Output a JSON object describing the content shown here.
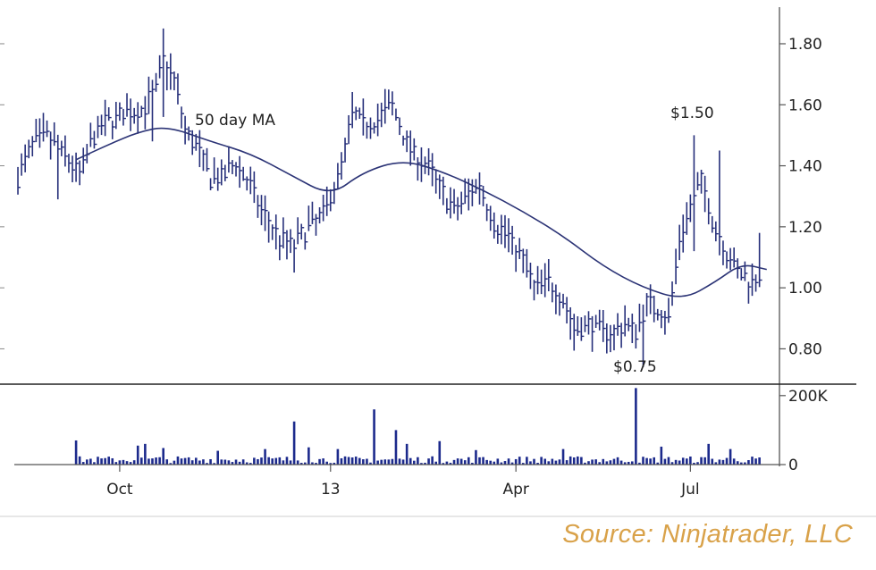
{
  "chart_data": {
    "type": "bar",
    "subtype": "ohlc-price-with-volume",
    "title": "",
    "xlabel": "",
    "ylabel": "",
    "x_ticks": [
      "Oct",
      "13",
      "Apr",
      "Jul"
    ],
    "price_axis": {
      "ticks": [
        "1.80",
        "1.60",
        "1.40",
        "1.20",
        "1.00",
        "0.80"
      ],
      "ylim": [
        0.69,
        1.92
      ]
    },
    "volume_axis": {
      "ticks": [
        "200K",
        "0"
      ],
      "ylim": [
        0,
        228000
      ]
    },
    "annotations": {
      "ma_label": "50 day MA",
      "high_label": "$1.50",
      "low_label": "$0.75"
    },
    "price_anchors": [
      [
        0,
        1.36
      ],
      [
        4,
        1.47
      ],
      [
        8,
        1.5
      ],
      [
        13,
        1.43
      ],
      [
        17,
        1.37
      ],
      [
        21,
        1.5
      ],
      [
        25,
        1.55
      ],
      [
        30,
        1.57
      ],
      [
        34,
        1.58
      ],
      [
        38,
        1.65
      ],
      [
        40,
        1.75
      ],
      [
        43,
        1.68
      ],
      [
        46,
        1.52
      ],
      [
        50,
        1.44
      ],
      [
        53,
        1.36
      ],
      [
        56,
        1.36
      ],
      [
        60,
        1.41
      ],
      [
        64,
        1.33
      ],
      [
        67,
        1.25
      ],
      [
        72,
        1.16
      ],
      [
        76,
        1.14
      ],
      [
        80,
        1.2
      ],
      [
        84,
        1.24
      ],
      [
        86,
        1.3
      ],
      [
        89,
        1.4
      ],
      [
        92,
        1.57
      ],
      [
        95,
        1.54
      ],
      [
        99,
        1.55
      ],
      [
        103,
        1.6
      ],
      [
        106,
        1.5
      ],
      [
        109,
        1.44
      ],
      [
        113,
        1.39
      ],
      [
        117,
        1.31
      ],
      [
        120,
        1.25
      ],
      [
        124,
        1.31
      ],
      [
        127,
        1.34
      ],
      [
        131,
        1.21
      ],
      [
        135,
        1.17
      ],
      [
        139,
        1.09
      ],
      [
        142,
        1.0
      ],
      [
        146,
        1.02
      ],
      [
        150,
        0.96
      ],
      [
        153,
        0.86
      ],
      [
        157,
        0.88
      ],
      [
        161,
        0.86
      ],
      [
        164,
        0.85
      ],
      [
        167,
        0.88
      ],
      [
        170,
        0.86
      ],
      [
        173,
        0.95
      ],
      [
        176,
        0.93
      ],
      [
        179,
        0.9
      ],
      [
        182,
        1.15
      ],
      [
        185,
        1.27
      ],
      [
        188,
        1.35
      ],
      [
        191,
        1.22
      ],
      [
        194,
        1.14
      ],
      [
        197,
        1.07
      ],
      [
        201,
        1.02
      ],
      [
        204,
        1.04
      ]
    ],
    "spikes": [
      {
        "bar": 40,
        "high": 1.85,
        "low": 1.56
      },
      {
        "bar": 37,
        "low": 1.48
      },
      {
        "bar": 11,
        "low": 1.29
      },
      {
        "bar": 76,
        "low": 1.05
      },
      {
        "bar": 102,
        "high": 1.65
      },
      {
        "bar": 172,
        "low": 0.74
      },
      {
        "bar": 186,
        "high": 1.5,
        "low": 1.12
      },
      {
        "bar": 193,
        "high": 1.45
      },
      {
        "bar": 204,
        "high": 1.18
      }
    ],
    "ma_points": [
      [
        16,
        1.42
      ],
      [
        25,
        1.47
      ],
      [
        33,
        1.51
      ],
      [
        41,
        1.53
      ],
      [
        53,
        1.48
      ],
      [
        64,
        1.44
      ],
      [
        75,
        1.37
      ],
      [
        86,
        1.3
      ],
      [
        95,
        1.38
      ],
      [
        106,
        1.42
      ],
      [
        117,
        1.38
      ],
      [
        128,
        1.32
      ],
      [
        139,
        1.25
      ],
      [
        150,
        1.17
      ],
      [
        161,
        1.07
      ],
      [
        172,
        1.0
      ],
      [
        183,
        0.96
      ],
      [
        192,
        1.02
      ],
      [
        199,
        1.08
      ],
      [
        206,
        1.06
      ]
    ],
    "volume_baseline": 9000,
    "volume_spikes": [
      {
        "bar": 16,
        "value": 70000
      },
      {
        "bar": 33,
        "value": 55000
      },
      {
        "bar": 35,
        "value": 60000
      },
      {
        "bar": 40,
        "value": 48000
      },
      {
        "bar": 55,
        "value": 40000
      },
      {
        "bar": 68,
        "value": 45000
      },
      {
        "bar": 76,
        "value": 125000
      },
      {
        "bar": 80,
        "value": 50000
      },
      {
        "bar": 88,
        "value": 45000
      },
      {
        "bar": 98,
        "value": 160000
      },
      {
        "bar": 104,
        "value": 100000
      },
      {
        "bar": 107,
        "value": 60000
      },
      {
        "bar": 116,
        "value": 68000
      },
      {
        "bar": 126,
        "value": 42000
      },
      {
        "bar": 150,
        "value": 45000
      },
      {
        "bar": 170,
        "value": 222000
      },
      {
        "bar": 177,
        "value": 52000
      },
      {
        "bar": 190,
        "value": 60000
      },
      {
        "bar": 196,
        "value": 45000
      }
    ]
  },
  "source": "Source: Ninjatrader, LLC"
}
